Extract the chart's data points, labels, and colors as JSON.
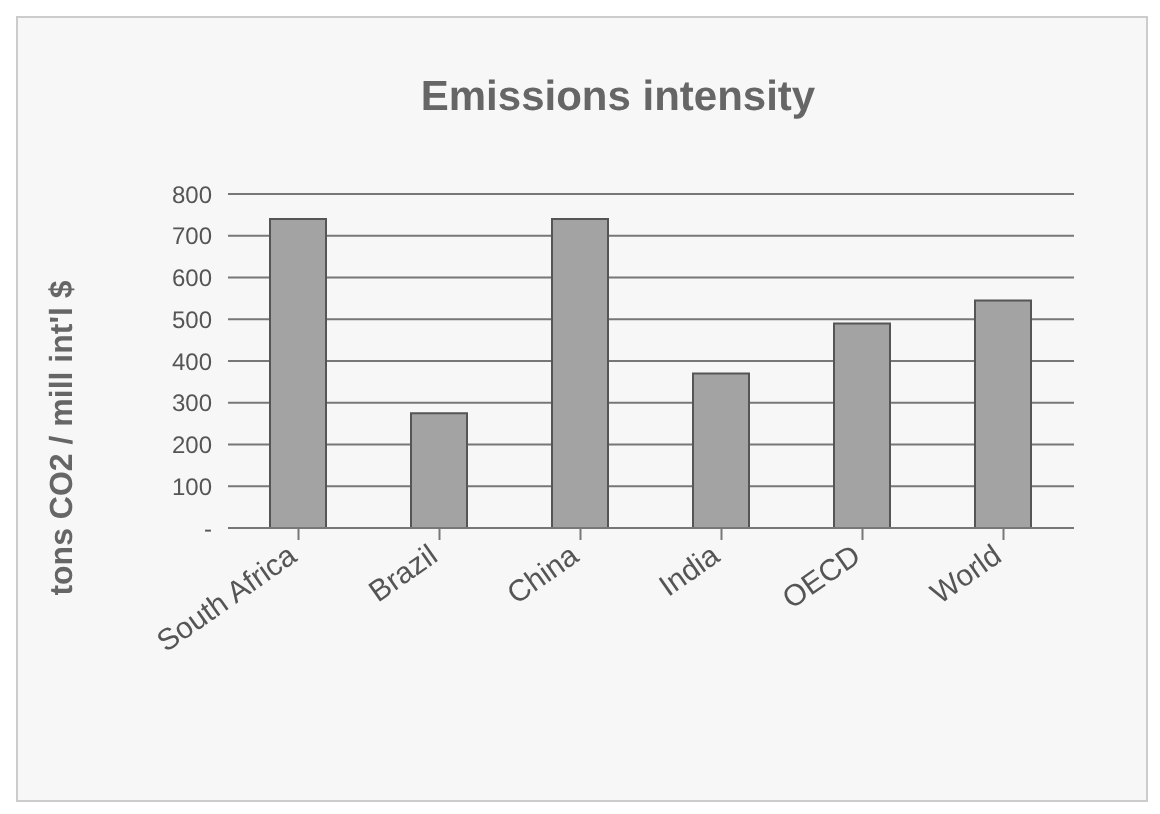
{
  "chart_data": {
    "type": "bar",
    "title": "Emissions intensity",
    "ylabel": "tons CO2 / mill int'l $",
    "categories": [
      "South Africa",
      "Brazil",
      "China",
      "India",
      "OECD",
      "World"
    ],
    "values": [
      740,
      275,
      740,
      370,
      490,
      545
    ],
    "color": "#a3a3a3",
    "ylim": [
      0,
      800
    ],
    "yticks": [
      {
        "value": 0,
        "label": "-"
      },
      100,
      200,
      300,
      400,
      500,
      600,
      700,
      800
    ],
    "grid": "y",
    "legend": false
  }
}
